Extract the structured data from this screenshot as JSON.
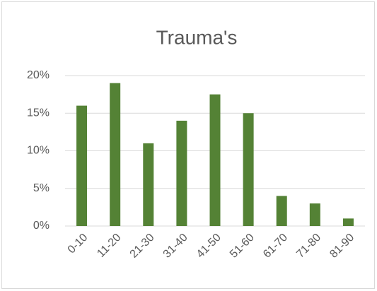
{
  "chart_data": {
    "type": "bar",
    "title": "Trauma's",
    "categories": [
      "0-10",
      "11-20",
      "21-30",
      "31-40",
      "41-50",
      "51-60",
      "61-70",
      "71-80",
      "81-90"
    ],
    "values": [
      16,
      19,
      11,
      14,
      17.5,
      15,
      4,
      3,
      1
    ],
    "color": "#548235",
    "ylim": [
      0,
      20
    ],
    "yticks": [
      {
        "value": 0,
        "label": "0%"
      },
      {
        "value": 5,
        "label": "5%"
      },
      {
        "value": 10,
        "label": "10%"
      },
      {
        "value": 15,
        "label": "15%"
      },
      {
        "value": 20,
        "label": "20%"
      }
    ],
    "grid": true
  }
}
